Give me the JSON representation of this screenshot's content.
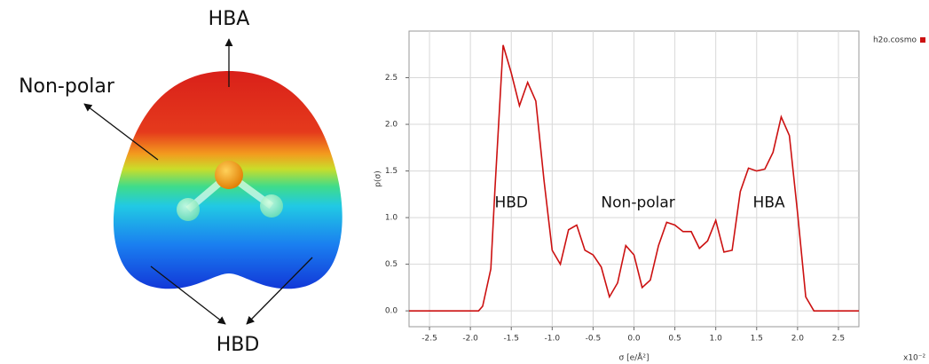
{
  "figure_labels": {
    "top": "HBA",
    "side": "Non-polar",
    "bottom": "HBD"
  },
  "chart_data": {
    "type": "line",
    "x": [
      -2.75,
      -1.9,
      -1.85,
      -1.75,
      -1.7,
      -1.6,
      -1.5,
      -1.4,
      -1.3,
      -1.2,
      -1.1,
      -1.0,
      -0.9,
      -0.8,
      -0.7,
      -0.6,
      -0.5,
      -0.4,
      -0.3,
      -0.2,
      -0.1,
      0.0,
      0.1,
      0.2,
      0.3,
      0.4,
      0.5,
      0.6,
      0.7,
      0.8,
      0.9,
      1.0,
      1.1,
      1.2,
      1.3,
      1.4,
      1.5,
      1.6,
      1.7,
      1.8,
      1.9,
      2.0,
      2.1,
      2.2,
      2.75
    ],
    "series": [
      {
        "name": "h2o.cosmo",
        "color": "#cc1111",
        "values": [
          0,
          0,
          0.05,
          0.45,
          1.3,
          2.85,
          2.55,
          2.2,
          2.45,
          2.25,
          1.4,
          0.65,
          0.5,
          0.87,
          0.92,
          0.65,
          0.6,
          0.47,
          0.15,
          0.3,
          0.7,
          0.6,
          0.25,
          0.33,
          0.7,
          0.95,
          0.92,
          0.85,
          0.85,
          0.67,
          0.75,
          0.97,
          0.63,
          0.65,
          1.28,
          1.53,
          1.5,
          1.52,
          1.7,
          2.08,
          1.88,
          1.05,
          0.15,
          0,
          0
        ]
      }
    ],
    "xlabel": "σ [e/Å²]",
    "ylabel": "p(σ)",
    "x_multiplier": "x10⁻²",
    "xlim": [
      -2.75,
      2.75
    ],
    "ylim": [
      -0.17,
      3.0
    ],
    "xticks": [
      -2.5,
      {
        "value": -2,
        "label": "-2.0"
      },
      -1.5,
      {
        "value": -1,
        "label": "-1.0"
      },
      -0.5,
      {
        "value": 0,
        "label": "0.0"
      },
      0.5,
      {
        "value": 1,
        "label": "1.0"
      },
      1.5,
      {
        "value": 2,
        "label": "2.0"
      },
      2.5
    ],
    "yticks": [
      {
        "value": 0,
        "label": "0.0"
      },
      0.5,
      {
        "value": 1,
        "label": "1.0"
      },
      1.5,
      {
        "value": 2,
        "label": "2.0"
      },
      2.5
    ],
    "grid": true,
    "legend": "top-right",
    "annotations": [
      {
        "text": "HBD",
        "x": -1.5,
        "y": 1.16
      },
      {
        "text": "Non-polar",
        "x": 0.05,
        "y": 1.16
      },
      {
        "text": "HBA",
        "x": 1.65,
        "y": 1.16
      }
    ]
  }
}
